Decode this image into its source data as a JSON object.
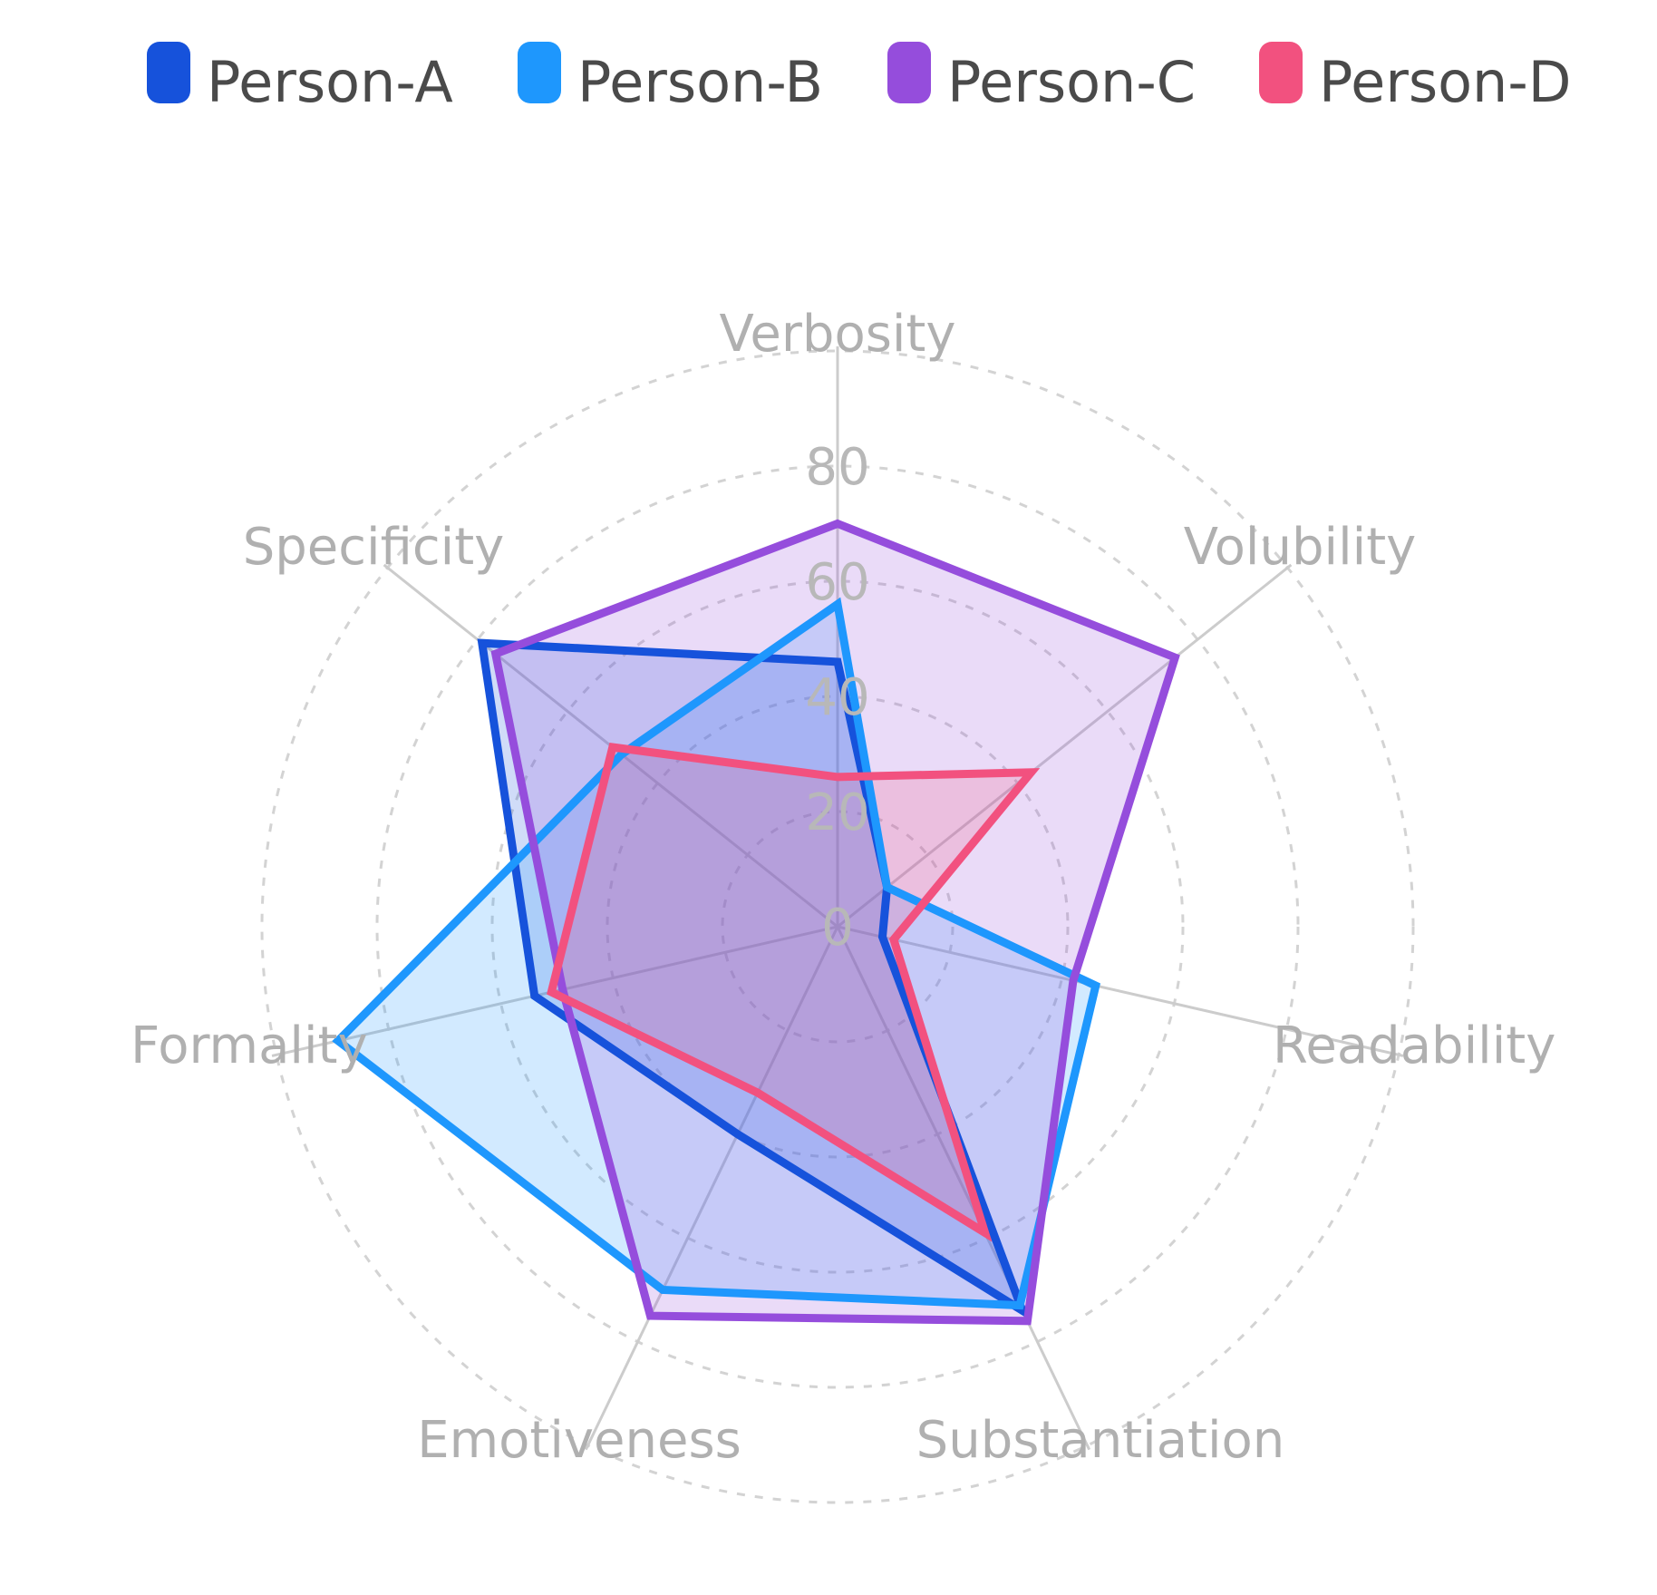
{
  "chart_data": {
    "type": "radar",
    "axes": [
      "Verbosity",
      "Volubility",
      "Readability",
      "Substantiation",
      "Emotiveness",
      "Formality",
      "Specificity"
    ],
    "ticks": [
      0,
      20,
      40,
      60,
      80
    ],
    "range": [
      0,
      80
    ],
    "grid": true,
    "legend_position": "top",
    "series": [
      {
        "name": "Person-A",
        "color": "#1652db",
        "values": [
          46,
          11,
          8,
          74,
          40,
          54,
          79
        ]
      },
      {
        "name": "Person-B",
        "color": "#1e97fd",
        "values": [
          56,
          11,
          46,
          73,
          70,
          89,
          48
        ]
      },
      {
        "name": "Person-C",
        "color": "#954ddc",
        "values": [
          70,
          75,
          42,
          76,
          75,
          49,
          76
        ]
      },
      {
        "name": "Person-D",
        "color": "#f2517f",
        "values": [
          26,
          43,
          10,
          59,
          32,
          51,
          50
        ]
      }
    ]
  }
}
